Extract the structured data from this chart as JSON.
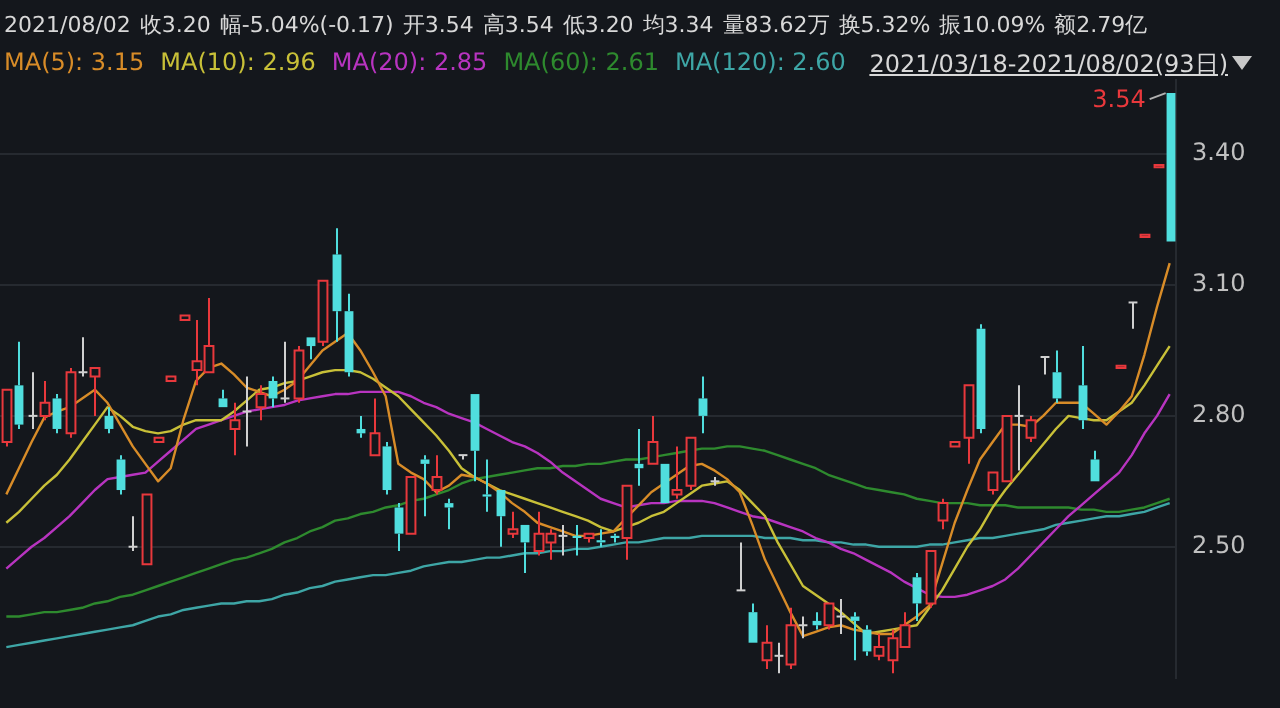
{
  "chart_data": {
    "type": "candlestick",
    "subtitle": "2021/08/02 收3.20 幅-5.04%(-0.17) 开3.54 高3.54 低3.20 均3.34 量83.62万 换5.32% 振10.09% 额2.79亿",
    "categories": [
      null,
      null,
      null,
      null,
      null,
      null,
      null,
      null,
      null,
      null,
      null,
      null,
      null,
      null,
      null,
      null,
      null,
      null,
      null,
      null,
      null,
      null,
      null,
      null,
      null,
      null,
      null,
      null,
      null,
      null,
      null,
      null,
      null,
      null,
      null,
      null,
      null,
      null,
      null,
      null,
      null,
      null,
      null,
      null,
      null,
      null,
      null,
      null,
      null,
      null,
      null,
      null,
      null,
      null,
      null,
      null,
      null,
      null,
      null,
      null,
      null,
      null,
      null,
      null,
      null,
      null,
      null,
      null,
      null,
      null,
      null,
      null,
      null,
      null,
      null,
      null,
      null,
      null,
      null,
      null,
      null,
      null,
      null,
      null,
      null,
      null,
      null,
      null,
      null,
      null,
      null,
      null,
      null
    ],
    "ohlc": [
      [
        2.74,
        2.86,
        2.73,
        2.86
      ],
      [
        2.87,
        2.97,
        2.77,
        2.78
      ],
      [
        2.8,
        2.9,
        2.77,
        2.8
      ],
      [
        2.8,
        2.88,
        2.79,
        2.83
      ],
      [
        2.84,
        2.85,
        2.76,
        2.77
      ],
      [
        2.76,
        2.91,
        2.75,
        2.9
      ],
      [
        2.9,
        2.98,
        2.89,
        2.9
      ],
      [
        2.89,
        2.91,
        2.8,
        2.91
      ],
      [
        2.8,
        2.82,
        2.76,
        2.77
      ],
      [
        2.7,
        2.71,
        2.62,
        2.63
      ],
      [
        2.5,
        2.57,
        2.49,
        2.5
      ],
      [
        2.46,
        2.62,
        2.46,
        2.62
      ],
      [
        2.74,
        2.75,
        2.74,
        2.75
      ],
      [
        2.88,
        2.89,
        2.88,
        2.89
      ],
      [
        3.02,
        3.03,
        3.02,
        3.03
      ],
      [
        2.905,
        3.02,
        2.87,
        2.925
      ],
      [
        2.9,
        3.07,
        2.9,
        2.96
      ],
      [
        2.84,
        2.86,
        2.82,
        2.82
      ],
      [
        2.77,
        2.83,
        2.71,
        2.79
      ],
      [
        2.81,
        2.89,
        2.73,
        2.81
      ],
      [
        2.82,
        2.87,
        2.79,
        2.85
      ],
      [
        2.88,
        2.89,
        2.82,
        2.84
      ],
      [
        2.84,
        2.97,
        2.83,
        2.84
      ],
      [
        2.84,
        2.96,
        2.83,
        2.95
      ],
      [
        2.98,
        2.98,
        2.93,
        2.96
      ],
      [
        2.97,
        3.11,
        2.96,
        3.11
      ],
      [
        3.17,
        3.23,
        2.97,
        3.04
      ],
      [
        3.04,
        3.08,
        2.89,
        2.9
      ],
      [
        2.77,
        2.8,
        2.75,
        2.76
      ],
      [
        2.71,
        2.84,
        2.71,
        2.76
      ],
      [
        2.73,
        2.74,
        2.62,
        2.63
      ],
      [
        2.59,
        2.6,
        2.49,
        2.53
      ],
      [
        2.53,
        2.66,
        2.53,
        2.66
      ],
      [
        2.7,
        2.71,
        2.57,
        2.69
      ],
      [
        2.63,
        2.71,
        2.62,
        2.66
      ],
      [
        2.6,
        2.61,
        2.54,
        2.59
      ],
      [
        2.71,
        2.71,
        2.7,
        2.71
      ],
      [
        2.85,
        2.85,
        2.65,
        2.72
      ],
      [
        2.62,
        2.7,
        2.58,
        2.615
      ],
      [
        2.63,
        2.63,
        2.5,
        2.57
      ],
      [
        2.53,
        2.58,
        2.52,
        2.54
      ],
      [
        2.55,
        2.55,
        2.44,
        2.51
      ],
      [
        2.49,
        2.58,
        2.48,
        2.53
      ],
      [
        2.51,
        2.54,
        2.47,
        2.53
      ],
      [
        2.525,
        2.55,
        2.48,
        2.525
      ],
      [
        2.525,
        2.55,
        2.48,
        2.52
      ],
      [
        2.52,
        2.53,
        2.51,
        2.53
      ],
      [
        2.515,
        2.54,
        2.5,
        2.51
      ],
      [
        2.525,
        2.53,
        2.51,
        2.52
      ],
      [
        2.52,
        2.64,
        2.47,
        2.64
      ],
      [
        2.69,
        2.77,
        2.64,
        2.68
      ],
      [
        2.69,
        2.8,
        2.69,
        2.74
      ],
      [
        2.69,
        2.69,
        2.6,
        2.6
      ],
      [
        2.62,
        2.73,
        2.61,
        2.63
      ],
      [
        2.64,
        2.75,
        2.63,
        2.75
      ],
      [
        2.84,
        2.89,
        2.76,
        2.8
      ],
      [
        2.65,
        2.66,
        2.64,
        2.65
      ],
      null,
      [
        2.4,
        2.51,
        2.4,
        2.4
      ],
      [
        2.35,
        2.37,
        2.28,
        2.28
      ],
      [
        2.24,
        2.32,
        2.22,
        2.28
      ],
      [
        2.25,
        2.28,
        2.21,
        2.25
      ],
      [
        2.23,
        2.36,
        2.22,
        2.32
      ],
      [
        2.32,
        2.34,
        2.29,
        2.32
      ],
      [
        2.33,
        2.35,
        2.31,
        2.32
      ],
      [
        2.32,
        2.37,
        2.31,
        2.37
      ],
      [
        2.34,
        2.38,
        2.3,
        2.34
      ],
      [
        2.34,
        2.35,
        2.24,
        2.33
      ],
      [
        2.31,
        2.32,
        2.25,
        2.26
      ],
      [
        2.25,
        2.3,
        2.24,
        2.27
      ],
      [
        2.24,
        2.31,
        2.21,
        2.29
      ],
      [
        2.27,
        2.35,
        2.27,
        2.32
      ],
      [
        2.43,
        2.44,
        2.33,
        2.37
      ],
      [
        2.37,
        2.49,
        2.36,
        2.49
      ],
      [
        2.56,
        2.61,
        2.54,
        2.6
      ],
      [
        2.73,
        2.74,
        2.73,
        2.74
      ],
      [
        2.75,
        2.87,
        2.69,
        2.87
      ],
      [
        3.0,
        3.01,
        2.76,
        2.77
      ],
      [
        2.63,
        2.67,
        2.62,
        2.67
      ],
      [
        2.65,
        2.8,
        2.65,
        2.8
      ],
      [
        2.8,
        2.87,
        2.675,
        2.8
      ],
      [
        2.75,
        2.8,
        2.74,
        2.79
      ],
      [
        2.935,
        2.935,
        2.895,
        2.935
      ],
      [
        2.9,
        2.95,
        2.83,
        2.84
      ],
      null,
      [
        2.87,
        2.96,
        2.77,
        2.79
      ],
      [
        2.7,
        2.72,
        2.65,
        2.65
      ],
      null,
      [
        2.91,
        2.915,
        2.91,
        2.915
      ],
      [
        3.06,
        3.06,
        3.0,
        3.06
      ],
      [
        3.21,
        3.215,
        3.21,
        3.215
      ],
      [
        3.37,
        3.375,
        3.37,
        3.375
      ],
      [
        3.54,
        3.54,
        3.2,
        3.2
      ]
    ],
    "series": [
      {
        "type": "line",
        "name": "MA(5): 3.15",
        "color": "#d88c28",
        "values": [
          2.62,
          2.68,
          2.74,
          2.796,
          2.81,
          2.82,
          2.84,
          2.86,
          2.83,
          2.78,
          2.73,
          2.69,
          2.65,
          2.68,
          2.79,
          2.88,
          2.91,
          2.92,
          2.895,
          2.865,
          2.855,
          2.845,
          2.86,
          2.88,
          2.915,
          2.95,
          2.97,
          2.99,
          2.95,
          2.9,
          2.845,
          2.69,
          2.67,
          2.655,
          2.625,
          2.64,
          2.665,
          2.66,
          2.645,
          2.625,
          2.6,
          2.58,
          2.555,
          2.545,
          2.535,
          2.525,
          2.525,
          2.53,
          2.535,
          2.565,
          2.595,
          2.625,
          2.645,
          2.665,
          2.685,
          2.69,
          2.675,
          2.655,
          2.625,
          2.55,
          2.47,
          2.41,
          2.35,
          2.295,
          2.305,
          2.315,
          2.32,
          2.31,
          2.305,
          2.3,
          2.3,
          2.32,
          2.34,
          2.365,
          2.46,
          2.555,
          2.63,
          2.7,
          2.74,
          2.78,
          2.78,
          2.775,
          2.8,
          2.83,
          2.83,
          2.83,
          2.805,
          2.78,
          2.81,
          2.845,
          2.94,
          3.05,
          3.15
        ]
      },
      {
        "type": "line",
        "name": "MA(10): 2.96",
        "color": "#c8c038",
        "values": [
          2.555,
          2.58,
          2.61,
          2.64,
          2.665,
          2.7,
          2.74,
          2.78,
          2.82,
          2.8,
          2.775,
          2.765,
          2.76,
          2.765,
          2.78,
          2.79,
          2.79,
          2.79,
          2.81,
          2.835,
          2.86,
          2.865,
          2.875,
          2.88,
          2.89,
          2.9,
          2.905,
          2.905,
          2.9,
          2.885,
          2.865,
          2.845,
          2.815,
          2.785,
          2.755,
          2.72,
          2.68,
          2.66,
          2.645,
          2.63,
          2.62,
          2.61,
          2.6,
          2.59,
          2.58,
          2.57,
          2.56,
          2.545,
          2.535,
          2.545,
          2.555,
          2.57,
          2.58,
          2.6,
          2.62,
          2.64,
          2.645,
          2.65,
          2.63,
          2.6,
          2.57,
          2.51,
          2.46,
          2.41,
          2.39,
          2.37,
          2.35,
          2.325,
          2.3,
          2.305,
          2.31,
          2.315,
          2.32,
          2.36,
          2.4,
          2.45,
          2.5,
          2.54,
          2.59,
          2.63,
          2.665,
          2.7,
          2.735,
          2.77,
          2.8,
          2.795,
          2.79,
          2.79,
          2.81,
          2.83,
          2.87,
          2.915,
          2.96
        ]
      },
      {
        "type": "line",
        "name": "MA(20): 2.85",
        "color": "#b834c0",
        "values": [
          2.45,
          2.475,
          2.5,
          2.52,
          2.545,
          2.57,
          2.6,
          2.63,
          2.655,
          2.66,
          2.665,
          2.67,
          2.695,
          2.72,
          2.745,
          2.77,
          2.78,
          2.79,
          2.8,
          2.81,
          2.815,
          2.82,
          2.825,
          2.835,
          2.84,
          2.845,
          2.85,
          2.85,
          2.855,
          2.855,
          2.855,
          2.855,
          2.845,
          2.83,
          2.82,
          2.805,
          2.795,
          2.785,
          2.77,
          2.755,
          2.74,
          2.73,
          2.715,
          2.695,
          2.67,
          2.65,
          2.63,
          2.61,
          2.6,
          2.59,
          2.595,
          2.6,
          2.6,
          2.605,
          2.605,
          2.605,
          2.6,
          2.59,
          2.58,
          2.57,
          2.565,
          2.555,
          2.545,
          2.535,
          2.52,
          2.51,
          2.495,
          2.485,
          2.47,
          2.455,
          2.44,
          2.42,
          2.405,
          2.39,
          2.385,
          2.385,
          2.39,
          2.4,
          2.41,
          2.425,
          2.45,
          2.48,
          2.51,
          2.54,
          2.57,
          2.595,
          2.62,
          2.645,
          2.67,
          2.71,
          2.76,
          2.8,
          2.85
        ]
      },
      {
        "type": "line",
        "name": "MA(60): 2.61",
        "color": "#2e8a2e",
        "values": [
          2.34,
          2.34,
          2.345,
          2.35,
          2.35,
          2.355,
          2.36,
          2.37,
          2.375,
          2.385,
          2.39,
          2.4,
          2.41,
          2.42,
          2.43,
          2.44,
          2.45,
          2.46,
          2.47,
          2.475,
          2.485,
          2.495,
          2.51,
          2.52,
          2.535,
          2.545,
          2.56,
          2.565,
          2.575,
          2.58,
          2.59,
          2.595,
          2.605,
          2.61,
          2.62,
          2.63,
          2.645,
          2.655,
          2.66,
          2.665,
          2.67,
          2.675,
          2.68,
          2.68,
          2.685,
          2.685,
          2.69,
          2.69,
          2.695,
          2.7,
          2.7,
          2.705,
          2.71,
          2.715,
          2.72,
          2.725,
          2.725,
          2.73,
          2.73,
          2.725,
          2.72,
          2.71,
          2.7,
          2.69,
          2.68,
          2.665,
          2.655,
          2.645,
          2.635,
          2.63,
          2.625,
          2.62,
          2.61,
          2.605,
          2.6,
          2.6,
          2.6,
          2.595,
          2.595,
          2.595,
          2.59,
          2.59,
          2.59,
          2.59,
          2.59,
          2.585,
          2.585,
          2.58,
          2.58,
          2.585,
          2.59,
          2.6,
          2.61
        ]
      },
      {
        "type": "line",
        "name": "MA(120): 2.60",
        "color": "#3ea6a6",
        "values": [
          2.27,
          2.275,
          2.28,
          2.285,
          2.29,
          2.295,
          2.3,
          2.305,
          2.31,
          2.315,
          2.32,
          2.33,
          2.34,
          2.345,
          2.355,
          2.36,
          2.365,
          2.37,
          2.37,
          2.375,
          2.375,
          2.38,
          2.39,
          2.395,
          2.405,
          2.41,
          2.42,
          2.425,
          2.43,
          2.435,
          2.435,
          2.44,
          2.445,
          2.455,
          2.46,
          2.465,
          2.465,
          2.47,
          2.475,
          2.475,
          2.48,
          2.485,
          2.485,
          2.49,
          2.49,
          2.495,
          2.495,
          2.5,
          2.505,
          2.51,
          2.51,
          2.515,
          2.52,
          2.52,
          2.52,
          2.525,
          2.525,
          2.525,
          2.525,
          2.525,
          2.52,
          2.52,
          2.52,
          2.515,
          2.515,
          2.51,
          2.51,
          2.505,
          2.505,
          2.5,
          2.5,
          2.5,
          2.5,
          2.505,
          2.505,
          2.51,
          2.515,
          2.52,
          2.52,
          2.525,
          2.53,
          2.535,
          2.54,
          2.55,
          2.555,
          2.56,
          2.565,
          2.57,
          2.57,
          2.575,
          2.58,
          2.59,
          2.6
        ]
      }
    ],
    "ylim": [
      2.2,
      3.57
    ],
    "yticks": [
      {
        "value": 2.5,
        "label": "2.50"
      },
      {
        "value": 2.8,
        "label": "2.80"
      },
      {
        "value": 3.1,
        "label": "3.10"
      },
      {
        "value": 3.4,
        "label": "3.40"
      }
    ],
    "grid": "y",
    "legend": "top left",
    "marker": "none",
    "tick_labels": "y",
    "annotations": [
      "2021/03/18-2021/08/02(93日)",
      "3.54"
    ]
  }
}
